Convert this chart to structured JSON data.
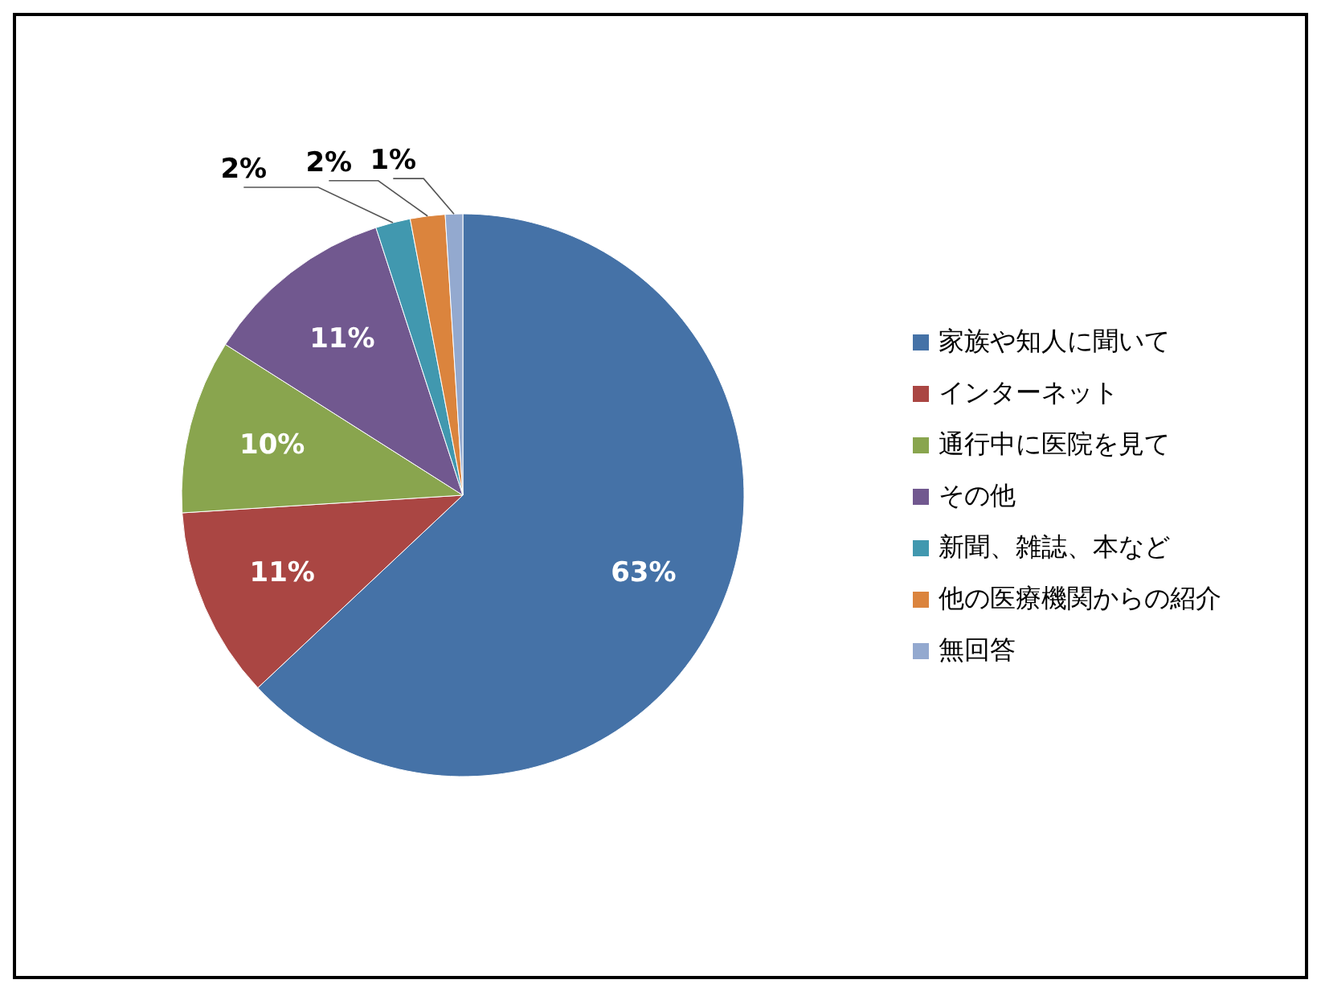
{
  "chart_data": {
    "type": "pie",
    "categories": [
      "家族や知人に聞いて",
      "インターネット",
      "通行中に医院を見て",
      "その他",
      "新聞、雑誌、本など",
      "他の医療機関からの紹介",
      "無回答"
    ],
    "values": [
      63,
      11,
      10,
      11,
      2,
      2,
      1
    ],
    "colors": [
      "#4572a7",
      "#aa4643",
      "#89a54e",
      "#71588f",
      "#4198af",
      "#db843d",
      "#93a9cf"
    ],
    "value_labels": [
      "63%",
      "11%",
      "10%",
      "11%",
      "2%",
      "2%",
      "1%"
    ],
    "legend": "right"
  }
}
